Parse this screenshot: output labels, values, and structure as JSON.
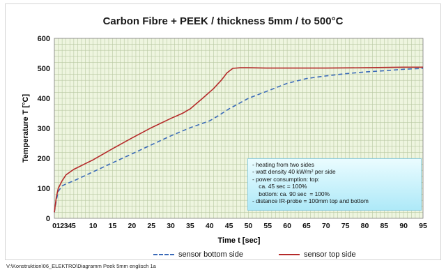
{
  "chart_data": {
    "type": "line",
    "title": "Carbon Fibre + PEEK / thickness 5mm / to 500°C",
    "xlabel": "Time t [sec]",
    "ylabel": "Temperature T [°C]",
    "xlim": [
      0,
      95
    ],
    "ylim": [
      0,
      600
    ],
    "x_ticks": [
      "0",
      "1",
      "2",
      "3",
      "4",
      "5",
      "10",
      "15",
      "20",
      "25",
      "30",
      "35",
      "40",
      "45",
      "50",
      "55",
      "60",
      "65",
      "70",
      "75",
      "80",
      "85",
      "90",
      "95"
    ],
    "y_ticks": [
      "0",
      "100",
      "200",
      "300",
      "400",
      "500",
      "600"
    ],
    "grid": true,
    "legend_position": "bottom",
    "series": [
      {
        "name": "sensor bottom side",
        "color": "#3a6ab8",
        "style": "dashed",
        "points": [
          [
            0,
            20
          ],
          [
            0.5,
            60
          ],
          [
            1,
            90
          ],
          [
            2,
            108
          ],
          [
            3,
            115
          ],
          [
            5,
            125
          ],
          [
            10,
            155
          ],
          [
            15,
            185
          ],
          [
            20,
            215
          ],
          [
            25,
            245
          ],
          [
            30,
            275
          ],
          [
            35,
            302
          ],
          [
            40,
            325
          ],
          [
            42,
            340
          ],
          [
            45,
            365
          ],
          [
            50,
            400
          ],
          [
            55,
            425
          ],
          [
            60,
            450
          ],
          [
            65,
            466
          ],
          [
            70,
            475
          ],
          [
            75,
            482
          ],
          [
            80,
            488
          ],
          [
            85,
            492
          ],
          [
            90,
            497
          ],
          [
            95,
            500
          ]
        ]
      },
      {
        "name": "sensor top side",
        "color": "#b52a2a",
        "style": "solid",
        "points": [
          [
            0,
            20
          ],
          [
            0.5,
            70
          ],
          [
            1,
            100
          ],
          [
            2,
            125
          ],
          [
            3,
            145
          ],
          [
            5,
            163
          ],
          [
            10,
            195
          ],
          [
            15,
            232
          ],
          [
            20,
            268
          ],
          [
            25,
            302
          ],
          [
            30,
            333
          ],
          [
            33,
            350
          ],
          [
            35,
            365
          ],
          [
            38,
            398
          ],
          [
            41,
            432
          ],
          [
            43,
            460
          ],
          [
            44.5,
            485
          ],
          [
            46,
            500
          ],
          [
            48,
            502
          ],
          [
            50,
            502
          ],
          [
            55,
            501
          ],
          [
            60,
            501
          ],
          [
            70,
            501
          ],
          [
            80,
            502
          ],
          [
            85,
            503
          ],
          [
            90,
            504
          ],
          [
            95,
            504
          ]
        ]
      }
    ],
    "annotations": [
      "- heating from two sides",
      "- watt density 40 kW/m² per side",
      "- power consumption: top:",
      "    ca. 45 sec = 100%",
      "    bottom: ca. 90 sec  = 100%",
      "- distance IR-probe = 100mm top and bottom"
    ]
  },
  "footer": {
    "path": "V:\\Konstruktion\\06_ELEKTRO\\Diagramm Peek 5mm englisch 1a"
  },
  "colors": {
    "plot_background": "#eef5df",
    "grid": "#b8c8a2",
    "axis": "#7a7a7a"
  }
}
